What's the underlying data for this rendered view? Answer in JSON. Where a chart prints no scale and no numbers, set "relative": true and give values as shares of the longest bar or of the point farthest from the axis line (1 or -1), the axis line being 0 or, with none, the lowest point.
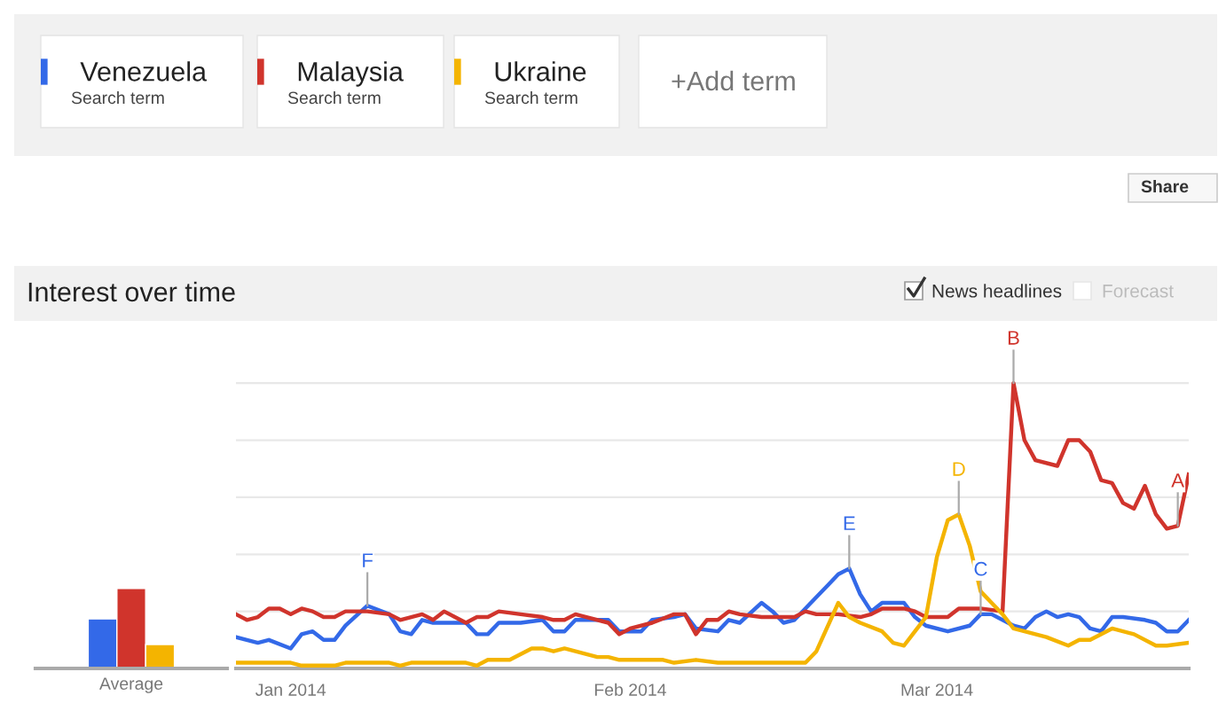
{
  "chart_data": [
    {
      "type": "other",
      "annotations": [
        "Search term",
        "Search term",
        "Search term",
        "+Add term",
        "Share",
        "News headlines",
        "Forecast"
      ]
    },
    {
      "type": "bar",
      "relative": true,
      "categories": [
        "Average"
      ],
      "series": [
        {
          "color": "#3369e8",
          "values": [
            0.62
          ]
        },
        {
          "color": "#d0342c",
          "values": [
            1
          ]
        },
        {
          "color": "#f4b400",
          "values": [
            0.3
          ]
        }
      ]
    },
    {
      "type": "line",
      "title": "Interest over time",
      "relative": true,
      "grid": "y",
      "legend": "top",
      "line_style": "solid",
      "xlim": [
        "2013-12-27",
        "2014-03-24"
      ],
      "xticks": [
        {
          "value": "2014-01-01",
          "label": "Jan 2014"
        },
        {
          "value": "2014-02-01",
          "label": "Feb 2014"
        },
        {
          "value": "2014-03-01",
          "label": "Mar 2014"
        }
      ],
      "series": [
        {
          "name": "Venezuela",
          "color": "#3369e8",
          "x": [
            "2013-12-27",
            "2013-12-29",
            "2013-12-30",
            "2014-01-01",
            "2014-01-02",
            "2014-01-03",
            "2014-01-04",
            "2014-01-05",
            "2014-01-06",
            "2014-01-08",
            "2014-01-10",
            "2014-01-11",
            "2014-01-12",
            "2014-01-13",
            "2014-01-14",
            "2014-01-17",
            "2014-01-18",
            "2014-01-19",
            "2014-01-20",
            "2014-01-22",
            "2014-01-24",
            "2014-01-25",
            "2014-01-26",
            "2014-01-27",
            "2014-01-30",
            "2014-01-31",
            "2014-02-02",
            "2014-02-03",
            "2014-02-05",
            "2014-02-06",
            "2014-02-07",
            "2014-02-09",
            "2014-02-10",
            "2014-02-11",
            "2014-02-13",
            "2014-02-14",
            "2014-02-15",
            "2014-02-16",
            "2014-02-18",
            "2014-02-19",
            "2014-02-20",
            "2014-02-21",
            "2014-02-22",
            "2014-02-23",
            "2014-02-24",
            "2014-02-26",
            "2014-02-27",
            "2014-02-28",
            "2014-03-02",
            "2014-03-04",
            "2014-03-05",
            "2014-03-06",
            "2014-03-08",
            "2014-03-09",
            "2014-03-10",
            "2014-03-11",
            "2014-03-12",
            "2014-03-13",
            "2014-03-14",
            "2014-03-15",
            "2014-03-16",
            "2014-03-17",
            "2014-03-18",
            "2014-03-20",
            "2014-03-21",
            "2014-03-22",
            "2014-03-23",
            "2014-03-24"
          ],
          "values": [
            0.11,
            0.09,
            0.1,
            0.07,
            0.12,
            0.13,
            0.1,
            0.1,
            0.15,
            0.22,
            0.19,
            0.13,
            0.12,
            0.17,
            0.16,
            0.16,
            0.12,
            0.12,
            0.16,
            0.16,
            0.17,
            0.13,
            0.13,
            0.17,
            0.17,
            0.13,
            0.13,
            0.17,
            0.18,
            0.19,
            0.14,
            0.13,
            0.17,
            0.16,
            0.23,
            0.2,
            0.16,
            0.17,
            0.25,
            0.29,
            0.33,
            0.35,
            0.26,
            0.2,
            0.23,
            0.23,
            0.18,
            0.15,
            0.13,
            0.15,
            0.19,
            0.19,
            0.15,
            0.14,
            0.18,
            0.2,
            0.18,
            0.19,
            0.18,
            0.14,
            0.13,
            0.18,
            0.18,
            0.17,
            0.16,
            0.13,
            0.13,
            0.17
          ]
        },
        {
          "name": "Malaysia",
          "color": "#d0342c",
          "x": [
            "2013-12-27",
            "2013-12-28",
            "2013-12-29",
            "2013-12-30",
            "2013-12-31",
            "2014-01-01",
            "2014-01-02",
            "2014-01-03",
            "2014-01-04",
            "2014-01-05",
            "2014-01-06",
            "2014-01-08",
            "2014-01-10",
            "2014-01-11",
            "2014-01-13",
            "2014-01-14",
            "2014-01-15",
            "2014-01-17",
            "2014-01-18",
            "2014-01-19",
            "2014-01-20",
            "2014-01-22",
            "2014-01-24",
            "2014-01-25",
            "2014-01-26",
            "2014-01-27",
            "2014-01-28",
            "2014-01-30",
            "2014-01-31",
            "2014-02-01",
            "2014-02-03",
            "2014-02-05",
            "2014-02-06",
            "2014-02-07",
            "2014-02-08",
            "2014-02-09",
            "2014-02-10",
            "2014-02-11",
            "2014-02-13",
            "2014-02-14",
            "2014-02-16",
            "2014-02-17",
            "2014-02-18",
            "2014-02-20",
            "2014-02-22",
            "2014-02-23",
            "2014-02-24",
            "2014-02-26",
            "2014-02-27",
            "2014-02-28",
            "2014-03-02",
            "2014-03-03",
            "2014-03-05",
            "2014-03-07",
            "2014-03-08",
            "2014-03-09",
            "2014-03-10",
            "2014-03-12",
            "2014-03-13",
            "2014-03-14",
            "2014-03-15",
            "2014-03-16",
            "2014-03-17",
            "2014-03-18",
            "2014-03-19",
            "2014-03-20",
            "2014-03-21",
            "2014-03-22",
            "2014-03-23",
            "2014-03-24"
          ],
          "values": [
            0.19,
            0.17,
            0.18,
            0.21,
            0.21,
            0.19,
            0.21,
            0.2,
            0.18,
            0.18,
            0.2,
            0.2,
            0.19,
            0.17,
            0.19,
            0.17,
            0.2,
            0.16,
            0.18,
            0.18,
            0.2,
            0.19,
            0.18,
            0.17,
            0.17,
            0.19,
            0.18,
            0.16,
            0.12,
            0.14,
            0.16,
            0.19,
            0.19,
            0.12,
            0.17,
            0.17,
            0.2,
            0.19,
            0.18,
            0.18,
            0.18,
            0.2,
            0.19,
            0.19,
            0.18,
            0.19,
            0.21,
            0.21,
            0.2,
            0.18,
            0.18,
            0.21,
            0.21,
            0.2,
            1,
            0.8,
            0.73,
            0.71,
            0.8,
            0.8,
            0.76,
            0.66,
            0.65,
            0.58,
            0.56,
            0.64,
            0.54,
            0.49,
            0.5,
            0.68
          ]
        },
        {
          "name": "Ukraine",
          "color": "#f4b400",
          "x": [
            "2013-12-27",
            "2014-01-01",
            "2014-01-02",
            "2014-01-05",
            "2014-01-06",
            "2014-01-10",
            "2014-01-11",
            "2014-01-12",
            "2014-01-17",
            "2014-01-18",
            "2014-01-19",
            "2014-01-21",
            "2014-01-23",
            "2014-01-24",
            "2014-01-25",
            "2014-01-26",
            "2014-01-27",
            "2014-01-29",
            "2014-01-30",
            "2014-01-31",
            "2014-02-04",
            "2014-02-05",
            "2014-02-07",
            "2014-02-09",
            "2014-02-17",
            "2014-02-18",
            "2014-02-20",
            "2014-02-21",
            "2014-02-22",
            "2014-02-24",
            "2014-02-25",
            "2014-02-26",
            "2014-02-27",
            "2014-02-28",
            "2014-03-01",
            "2014-03-02",
            "2014-03-03",
            "2014-03-04",
            "2014-03-05",
            "2014-03-06",
            "2014-03-07",
            "2014-03-08",
            "2014-03-11",
            "2014-03-13",
            "2014-03-14",
            "2014-03-15",
            "2014-03-17",
            "2014-03-19",
            "2014-03-21",
            "2014-03-22",
            "2014-03-24"
          ],
          "values": [
            0.02,
            0.02,
            0.01,
            0.01,
            0.02,
            0.02,
            0.01,
            0.02,
            0.02,
            0.01,
            0.03,
            0.03,
            0.07,
            0.07,
            0.06,
            0.07,
            0.06,
            0.04,
            0.04,
            0.03,
            0.03,
            0.02,
            0.03,
            0.02,
            0.02,
            0.06,
            0.23,
            0.18,
            0.16,
            0.13,
            0.09,
            0.08,
            0.13,
            0.18,
            0.39,
            0.52,
            0.54,
            0.43,
            0.27,
            0.23,
            0.19,
            0.14,
            0.11,
            0.08,
            0.1,
            0.1,
            0.14,
            0.12,
            0.08,
            0.08,
            0.09
          ]
        }
      ],
      "annotations": [
        {
          "text": "F",
          "x": "2014-01-08",
          "y": 0.22
        },
        {
          "text": "E",
          "x": "2014-02-21",
          "y": 0.35
        },
        {
          "text": "D",
          "x": "2014-03-03",
          "y": 0.54
        },
        {
          "text": "C",
          "x": "2014-03-05",
          "y": 0.19
        },
        {
          "text": "B",
          "x": "2014-03-08",
          "y": 1
        },
        {
          "text": "A",
          "x": "2014-03-23",
          "y": 0.5
        }
      ]
    }
  ]
}
